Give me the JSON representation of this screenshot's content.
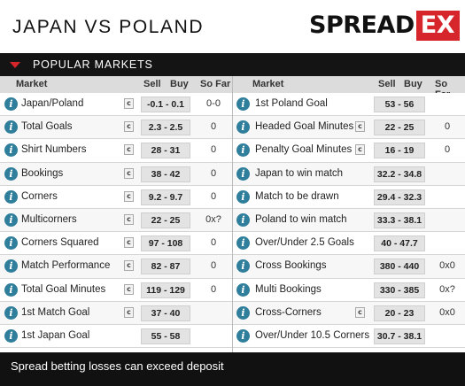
{
  "header": {
    "title": "JAPAN VS POLAND",
    "logo_left": "SPREAD",
    "logo_right": "EX"
  },
  "section": {
    "title": "POPULAR MARKETS"
  },
  "columns_header": {
    "market": "Market",
    "sell": "Sell",
    "buy": "Buy",
    "so_far": "So Far"
  },
  "left_markets": [
    {
      "name": "Japan/Poland",
      "c": "c",
      "price": "-0.1 - 0.1",
      "so_far": "0-0"
    },
    {
      "name": "Total Goals",
      "c": "c",
      "price": "2.3 - 2.5",
      "so_far": "0"
    },
    {
      "name": "Shirt Numbers",
      "c": "c",
      "price": "28 - 31",
      "so_far": "0"
    },
    {
      "name": "Bookings",
      "c": "c",
      "price": "38 - 42",
      "so_far": "0"
    },
    {
      "name": "Corners",
      "c": "c",
      "price": "9.2 - 9.7",
      "so_far": "0"
    },
    {
      "name": "Multicorners",
      "c": "c",
      "price": "22 - 25",
      "so_far": "0x?"
    },
    {
      "name": "Corners Squared",
      "c": "c",
      "price": "97 - 108",
      "so_far": "0"
    },
    {
      "name": "Match Performance",
      "c": "c",
      "price": "82 - 87",
      "so_far": "0"
    },
    {
      "name": "Total Goal Minutes",
      "c": "c",
      "price": "119 - 129",
      "so_far": "0"
    },
    {
      "name": "1st Match Goal",
      "c": "c",
      "price": "37 - 40",
      "so_far": ""
    },
    {
      "name": "1st Japan Goal",
      "c": "",
      "price": "55 - 58",
      "so_far": ""
    }
  ],
  "right_markets": [
    {
      "name": "1st Poland Goal",
      "c": "",
      "price": "53 - 56",
      "so_far": ""
    },
    {
      "name": "Headed Goal Minutes",
      "c": "c",
      "price": "22 - 25",
      "so_far": "0"
    },
    {
      "name": "Penalty Goal Minutes",
      "c": "c",
      "price": "16 - 19",
      "so_far": "0"
    },
    {
      "name": "Japan to win match",
      "c": "",
      "price": "32.2 - 34.8",
      "so_far": ""
    },
    {
      "name": "Match to be drawn",
      "c": "",
      "price": "29.4 - 32.3",
      "so_far": ""
    },
    {
      "name": "Poland to win match",
      "c": "",
      "price": "33.3 - 38.1",
      "so_far": ""
    },
    {
      "name": "Over/Under 2.5 Goals",
      "c": "",
      "price": "40 - 47.7",
      "so_far": ""
    },
    {
      "name": "Cross Bookings",
      "c": "",
      "price": "380 - 440",
      "so_far": "0x0"
    },
    {
      "name": "Multi Bookings",
      "c": "",
      "price": "330 - 385",
      "so_far": "0x?"
    },
    {
      "name": "Cross-Corners",
      "c": "c",
      "price": "20 - 23",
      "so_far": "0x0"
    },
    {
      "name": "Over/Under 10.5 Corners",
      "c": "",
      "price": "30.7 - 38.1",
      "so_far": ""
    }
  ],
  "footer": {
    "text": "Spread betting losses can exceed deposit"
  },
  "colors": {
    "accent": "#d7262b",
    "info_icon": "#2f7f9c",
    "bar": "#141414"
  }
}
